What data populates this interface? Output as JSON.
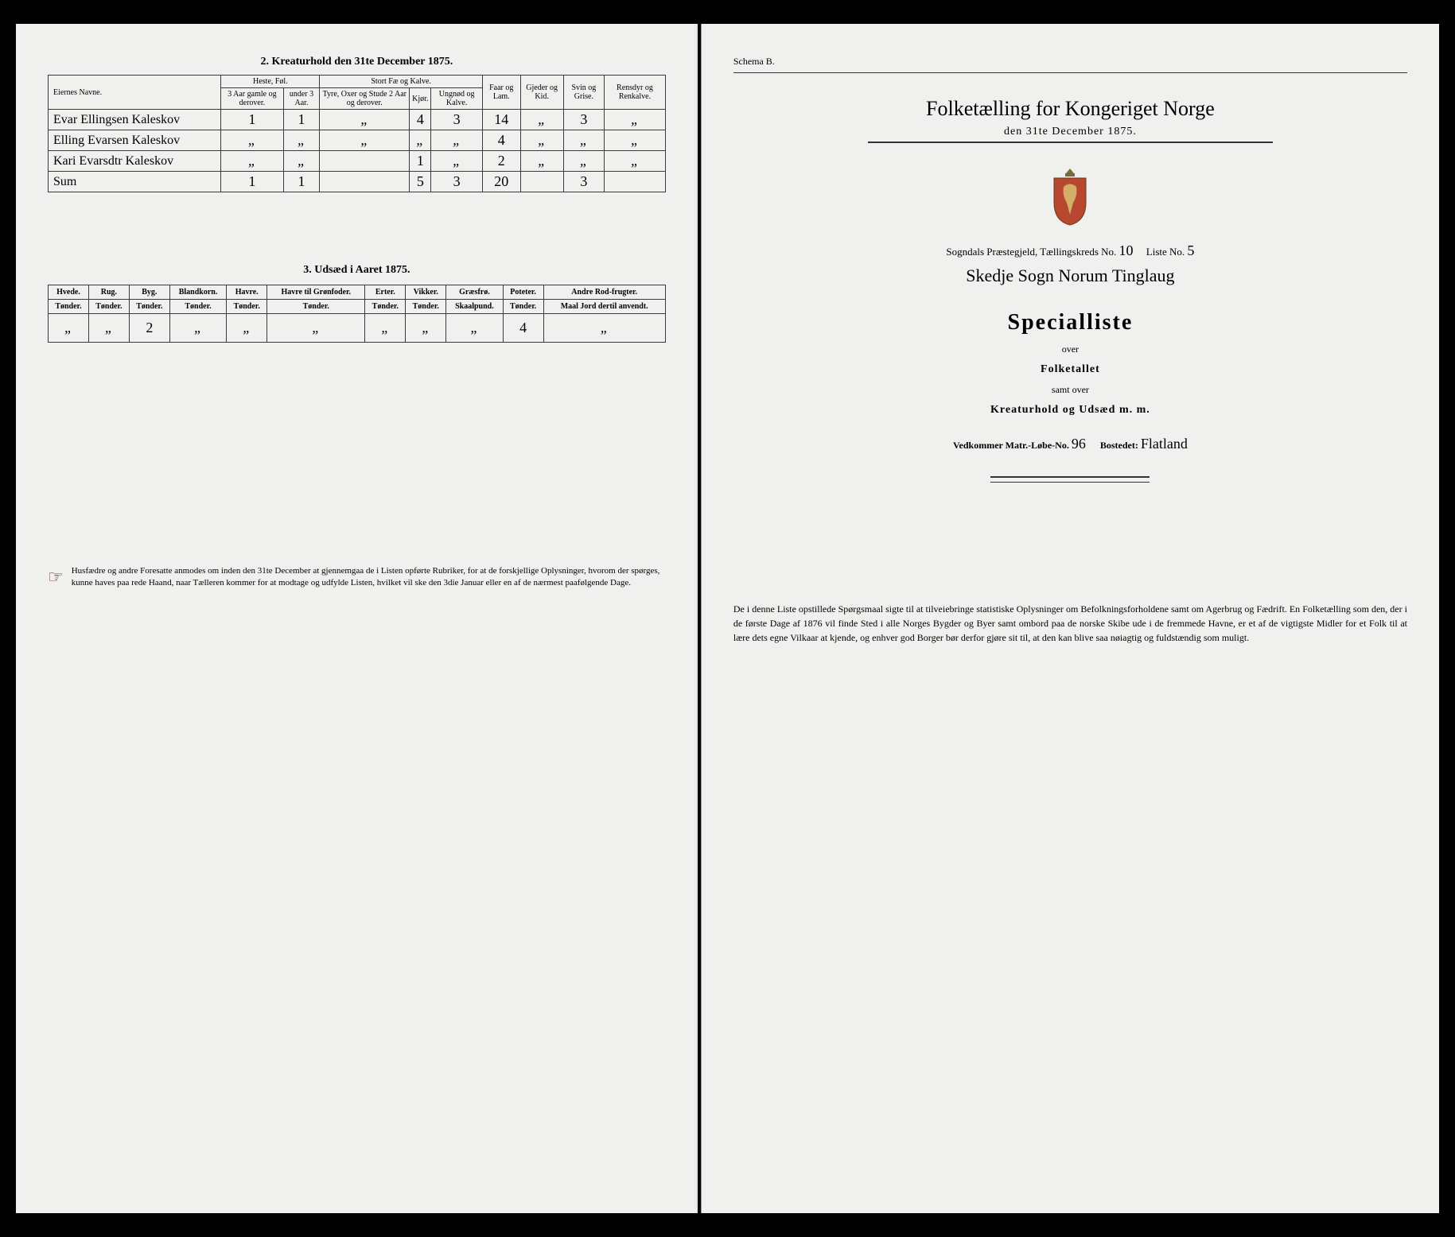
{
  "left": {
    "table2": {
      "title": "2.  Kreaturhold den 31te December 1875.",
      "headers": {
        "owner": "Eiernes Navne.",
        "heste": "Heste, Føl.",
        "heste_sub": [
          "3 Aar gamle og derover.",
          "under 3 Aar."
        ],
        "stort": "Stort Fæ og Kalve.",
        "stort_sub": [
          "Tyre, Oxer og Stude 2 Aar og derover.",
          "Kjør.",
          "Ungnød og Kalve."
        ],
        "faar": "Faar og Lam.",
        "gjeder": "Gjeder og Kid.",
        "svin": "Svin og Grise.",
        "rensdyr": "Rensdyr og Renkalve."
      },
      "rows": [
        {
          "name": "Evar Ellingsen Kaleskov",
          "c": [
            "1",
            "1",
            "\"",
            "4",
            "3",
            "14",
            "\"",
            "3",
            "\""
          ]
        },
        {
          "name": "Elling Evarsen Kaleskov",
          "c": [
            "\"",
            "\"",
            "\"",
            "\"",
            "\"",
            "4",
            "\"",
            "\"",
            "\""
          ]
        },
        {
          "name": "Kari Evarsdtr Kaleskov",
          "c": [
            "\"",
            "\"",
            "",
            "1",
            "\"",
            "2",
            "\"",
            "\"",
            "\""
          ]
        },
        {
          "name": "Sum",
          "c": [
            "1",
            "1",
            "",
            "5",
            "3",
            "20",
            "",
            "3",
            ""
          ]
        }
      ]
    },
    "table3": {
      "title": "3.  Udsæd i Aaret 1875.",
      "headers": [
        "Hvede.",
        "Rug.",
        "Byg.",
        "Blandkorn.",
        "Havre.",
        "Havre til Grønfoder.",
        "Erter.",
        "Vikker.",
        "Græsfrø.",
        "Poteter.",
        "Andre Rod-frugter."
      ],
      "subheaders": [
        "Tønder.",
        "Tønder.",
        "Tønder.",
        "Tønder.",
        "Tønder.",
        "Tønder.",
        "Tønder.",
        "Tønder.",
        "Skaalpund.",
        "Tønder.",
        "Maal Jord dertil anvendt."
      ],
      "row": [
        "\"",
        "\"",
        "2",
        "\"",
        "\"",
        "\"",
        "\"",
        "\"",
        "\"",
        "4",
        "\""
      ]
    },
    "footnote": "Husfædre og andre Foresatte anmodes om inden den 31te December at gjennemgaa de i Listen opførte Rubriker, for at de forskjellige Oplysninger, hvorom der spørges, kunne haves paa rede Haand, naar Tælleren kommer for at modtage og udfylde Listen, hvilket vil ske den 3die Januar eller en af de nærmest paafølgende Dage."
  },
  "right": {
    "schema": "Schema B.",
    "title": "Folketælling for Kongeriget Norge",
    "date": "den 31te December 1875.",
    "line1_a": "Sogndals Præstegjeld,  Tællingskreds No.",
    "line1_no": "10",
    "line1_b": "Liste No.",
    "line1_liste": "5",
    "handwritten": "Skedje Sogn   Norum   Tinglaug",
    "special": "Specialliste",
    "over1": "over",
    "folketallet": "Folketallet",
    "samt": "samt over",
    "kreatur": "Kreaturhold og Udsæd m. m.",
    "vedk_a": "Vedkommer Matr.-Løbe-No.",
    "vedk_no": "96",
    "vedk_b": "Bostedet:",
    "vedk_place": "Flatland",
    "para": "De i denne Liste opstillede Spørgsmaal sigte til at tilveiebringe statistiske Oplysninger om Befolkningsforholdene samt om Agerbrug og Fædrift.  En Folketælling som den, der i de første Dage af 1876 vil finde Sted i alle Norges Bygder og Byer samt ombord paa de norske Skibe ude i de fremmede Havne, er et af de vigtigste Midler for et Folk til at lære dets egne Vilkaar at kjende, og enhver god Borger bør derfor gjøre sit til, at den kan blive saa nøiagtig og fuldstændig som muligt."
  }
}
